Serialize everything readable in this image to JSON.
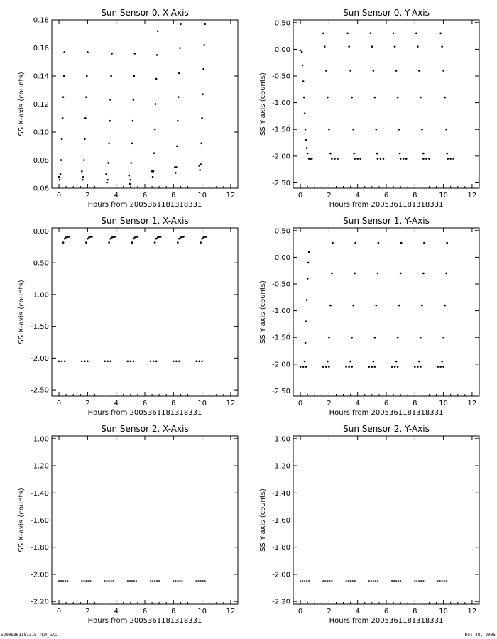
{
  "chart_data": [
    {
      "type": "scatter",
      "title": "Sun Sensor 0, X-Axis",
      "xlabel": "Hours from 2005361181318331",
      "ylabel": "SS X-axis (counts)",
      "xlim": [
        -0.5,
        12.5
      ],
      "ylim": [
        0.06,
        0.18
      ],
      "xticks": [
        0,
        2,
        4,
        6,
        8,
        10,
        12
      ],
      "yticks": [
        0.06,
        0.08,
        0.1,
        0.12,
        0.14,
        0.16,
        0.18
      ],
      "ytick_labels": [
        "0.06",
        "0.08",
        "0.10",
        "0.12",
        "0.14",
        "0.16",
        "0.18"
      ],
      "grid": false,
      "series": [
        {
          "x": [
            0.0,
            0.05,
            0.1,
            0.15,
            0.2,
            0.25,
            0.3,
            0.35,
            0.38,
            1.6,
            1.65,
            1.7,
            1.75,
            1.8,
            1.85,
            1.9,
            1.95,
            2.0,
            3.3,
            3.35,
            3.4,
            3.45,
            3.5,
            3.55,
            3.6,
            3.65,
            3.7,
            4.9,
            4.95,
            5.0,
            5.05,
            5.1,
            5.15,
            5.2,
            5.25,
            5.3,
            6.5,
            6.55,
            6.6,
            6.65,
            6.7,
            6.75,
            6.8,
            6.85,
            6.9,
            8.1,
            8.15,
            8.2,
            8.25,
            8.3,
            8.35,
            8.4,
            8.45,
            8.5,
            9.8,
            9.85,
            9.9,
            9.95,
            10.0,
            10.05,
            10.1,
            10.15,
            10.2
          ],
          "y": [
            0.068,
            0.066,
            0.07,
            0.08,
            0.095,
            0.11,
            0.125,
            0.14,
            0.157,
            0.072,
            0.066,
            0.068,
            0.08,
            0.095,
            0.11,
            0.125,
            0.14,
            0.157,
            0.07,
            0.064,
            0.066,
            0.078,
            0.092,
            0.108,
            0.123,
            0.14,
            0.156,
            0.069,
            0.063,
            0.066,
            0.078,
            0.092,
            0.108,
            0.123,
            0.14,
            0.156,
            0.072,
            0.068,
            0.072,
            0.085,
            0.102,
            0.12,
            0.138,
            0.155,
            0.172,
            0.075,
            0.071,
            0.075,
            0.09,
            0.108,
            0.125,
            0.142,
            0.16,
            0.177,
            0.076,
            0.073,
            0.077,
            0.092,
            0.11,
            0.127,
            0.145,
            0.162,
            0.177
          ]
        }
      ]
    },
    {
      "type": "scatter",
      "title": "Sun Sensor 0, Y-Axis",
      "xlabel": "Hours from 2005361181318331",
      "ylabel": "SS Y-axis (counts)",
      "xlim": [
        -0.5,
        12.5
      ],
      "ylim": [
        -2.6,
        0.55
      ],
      "xticks": [
        0,
        2,
        4,
        6,
        8,
        10,
        12
      ],
      "yticks": [
        -2.5,
        -2.0,
        -1.5,
        -1.0,
        -0.5,
        0.0,
        0.5
      ],
      "ytick_labels": [
        "-2.50",
        "-2.00",
        "-1.50",
        "-1.00",
        "-0.50",
        "0.00",
        "0.50"
      ],
      "grid": false,
      "series": [
        {
          "x": [
            0.0,
            0.1,
            0.15,
            0.2,
            0.25,
            0.3,
            0.35,
            0.4,
            0.45,
            0.5,
            1.6,
            1.7,
            1.8,
            1.9,
            2.0,
            2.1,
            3.3,
            3.4,
            3.5,
            3.6,
            3.7,
            3.75,
            4.9,
            5.0,
            5.1,
            5.2,
            5.3,
            5.35,
            6.5,
            6.6,
            6.7,
            6.8,
            6.9,
            6.95,
            8.1,
            8.2,
            8.3,
            8.4,
            8.5,
            8.6,
            9.8,
            9.9,
            10.0,
            10.1,
            10.2,
            10.25
          ],
          "y": [
            -0.02,
            -0.05,
            -0.3,
            -0.6,
            -0.9,
            -1.2,
            -1.5,
            -1.7,
            -1.85,
            -1.95,
            0.3,
            0.05,
            -0.4,
            -0.9,
            -1.5,
            -1.95,
            0.3,
            0.05,
            -0.4,
            -0.9,
            -1.5,
            -1.95,
            0.3,
            0.05,
            -0.4,
            -0.9,
            -1.5,
            -1.95,
            0.3,
            0.05,
            -0.4,
            -0.9,
            -1.5,
            -1.95,
            0.3,
            0.05,
            -0.4,
            -0.9,
            -1.5,
            -1.95,
            0.3,
            0.05,
            -0.4,
            -0.9,
            -1.5,
            -1.95
          ]
        },
        {
          "x": [
            0.6,
            0.7,
            0.8,
            2.2,
            2.4,
            2.6,
            3.8,
            4.0,
            4.2,
            5.4,
            5.6,
            5.8,
            7.0,
            7.2,
            7.4,
            8.6,
            8.8,
            9.0,
            10.3,
            10.5,
            10.7
          ],
          "y": [
            -2.05,
            -2.05,
            -2.05,
            -2.05,
            -2.05,
            -2.05,
            -2.05,
            -2.05,
            -2.05,
            -2.05,
            -2.05,
            -2.05,
            -2.05,
            -2.05,
            -2.05,
            -2.05,
            -2.05,
            -2.05,
            -2.05,
            -2.05,
            -2.05
          ]
        }
      ]
    },
    {
      "type": "scatter",
      "title": "Sun Sensor 1, X-Axis",
      "xlabel": "Hours from 2005361181318331",
      "ylabel": "SS X-axis (counts)",
      "xlim": [
        -0.5,
        12.5
      ],
      "ylim": [
        -2.6,
        0.05
      ],
      "xticks": [
        0,
        2,
        4,
        6,
        8,
        10,
        12
      ],
      "yticks": [
        -2.5,
        -2.0,
        -1.5,
        -1.0,
        -0.5,
        0.0
      ],
      "ytick_labels": [
        "-2.50",
        "-2.00",
        "-1.50",
        "-1.00",
        "-0.50",
        "0.00"
      ],
      "grid": false,
      "series": [
        {
          "x": [
            0.3,
            0.4,
            0.5,
            0.6,
            0.7,
            1.9,
            2.0,
            2.1,
            2.2,
            2.3,
            3.5,
            3.6,
            3.7,
            3.8,
            3.9,
            5.1,
            5.2,
            5.3,
            5.4,
            5.5,
            6.7,
            6.8,
            6.9,
            7.0,
            7.1,
            8.3,
            8.4,
            8.5,
            8.6,
            8.7,
            9.9,
            10.0,
            10.1,
            10.2,
            10.3
          ],
          "y": [
            -0.18,
            -0.12,
            -0.1,
            -0.09,
            -0.09,
            -0.18,
            -0.12,
            -0.1,
            -0.09,
            -0.09,
            -0.18,
            -0.12,
            -0.1,
            -0.09,
            -0.09,
            -0.18,
            -0.12,
            -0.1,
            -0.09,
            -0.09,
            -0.18,
            -0.12,
            -0.1,
            -0.09,
            -0.09,
            -0.18,
            -0.12,
            -0.1,
            -0.09,
            -0.09,
            -0.18,
            -0.12,
            -0.1,
            -0.09,
            -0.09
          ]
        },
        {
          "x": [
            0.0,
            0.2,
            0.4,
            1.6,
            1.8,
            2.0,
            3.2,
            3.4,
            3.6,
            4.8,
            5.0,
            5.2,
            6.4,
            6.6,
            6.8,
            8.0,
            8.2,
            8.4,
            9.6,
            9.8,
            10.0
          ],
          "y": [
            -2.05,
            -2.05,
            -2.05,
            -2.05,
            -2.05,
            -2.05,
            -2.05,
            -2.05,
            -2.05,
            -2.05,
            -2.05,
            -2.05,
            -2.05,
            -2.05,
            -2.05,
            -2.05,
            -2.05,
            -2.05,
            -2.05,
            -2.05,
            -2.05
          ]
        }
      ]
    },
    {
      "type": "scatter",
      "title": "Sun Sensor 1, Y-Axis",
      "xlabel": "Hours from 2005361181318331",
      "ylabel": "SS Y-axis (counts)",
      "xlim": [
        -0.5,
        12.5
      ],
      "ylim": [
        -2.6,
        0.55
      ],
      "xticks": [
        0,
        2,
        4,
        6,
        8,
        10,
        12
      ],
      "yticks": [
        -2.5,
        -2.0,
        -1.5,
        -1.0,
        -0.5,
        0.0,
        0.5
      ],
      "ytick_labels": [
        "-2.50",
        "-2.00",
        "-1.50",
        "-1.00",
        "-0.50",
        "0.00",
        "0.50"
      ],
      "grid": false,
      "series": [
        {
          "x": [
            0.3,
            0.35,
            0.4,
            0.45,
            0.5,
            0.55,
            0.6,
            1.9,
            2.0,
            2.1,
            2.2,
            2.25,
            3.5,
            3.6,
            3.7,
            3.8,
            3.85,
            5.1,
            5.2,
            5.3,
            5.4,
            5.45,
            6.7,
            6.8,
            6.9,
            7.0,
            7.05,
            8.3,
            8.4,
            8.5,
            8.6,
            8.65,
            9.9,
            10.0,
            10.1,
            10.2,
            10.25
          ],
          "y": [
            -1.95,
            -1.6,
            -1.2,
            -0.8,
            -0.4,
            -0.1,
            0.1,
            -1.95,
            -1.5,
            -0.9,
            -0.3,
            0.27,
            -1.95,
            -1.5,
            -0.9,
            -0.3,
            0.27,
            -1.95,
            -1.5,
            -0.9,
            -0.3,
            0.27,
            -1.95,
            -1.5,
            -0.9,
            -0.3,
            0.27,
            -1.95,
            -1.5,
            -0.9,
            -0.3,
            0.27,
            -1.95,
            -1.5,
            -0.9,
            -0.3,
            0.27
          ]
        },
        {
          "x": [
            0.0,
            0.2,
            0.4,
            1.6,
            1.8,
            2.0,
            3.2,
            3.4,
            3.6,
            4.8,
            5.0,
            5.2,
            6.4,
            6.6,
            6.8,
            8.0,
            8.2,
            8.4,
            9.6,
            9.8,
            10.0
          ],
          "y": [
            -2.05,
            -2.05,
            -2.05,
            -2.05,
            -2.05,
            -2.05,
            -2.05,
            -2.05,
            -2.05,
            -2.05,
            -2.05,
            -2.05,
            -2.05,
            -2.05,
            -2.05,
            -2.05,
            -2.05,
            -2.05,
            -2.05,
            -2.05,
            -2.05
          ]
        }
      ]
    },
    {
      "type": "scatter",
      "title": "Sun Sensor 2, X-Axis",
      "xlabel": "Hours from 2005361181318331",
      "ylabel": "SS X-axis (counts)",
      "xlim": [
        -0.5,
        12.5
      ],
      "ylim": [
        -2.22,
        -0.98
      ],
      "xticks": [
        0,
        2,
        4,
        6,
        8,
        10,
        12
      ],
      "yticks": [
        -2.2,
        -2.0,
        -1.8,
        -1.6,
        -1.4,
        -1.2,
        -1.0
      ],
      "ytick_labels": [
        "-2.20",
        "-2.00",
        "-1.80",
        "-1.60",
        "-1.40",
        "-1.20",
        "-1.00"
      ],
      "grid": false,
      "series": [
        {
          "x": [
            0.0,
            0.15,
            0.3,
            0.45,
            0.6,
            1.6,
            1.75,
            1.9,
            2.05,
            2.2,
            3.2,
            3.35,
            3.5,
            3.65,
            3.8,
            4.8,
            4.95,
            5.1,
            5.25,
            5.4,
            6.4,
            6.55,
            6.7,
            6.85,
            7.0,
            8.0,
            8.15,
            8.3,
            8.45,
            8.6,
            9.6,
            9.75,
            9.9,
            10.05,
            10.2
          ],
          "y": [
            -2.05,
            -2.05,
            -2.05,
            -2.05,
            -2.05,
            -2.05,
            -2.05,
            -2.05,
            -2.05,
            -2.05,
            -2.05,
            -2.05,
            -2.05,
            -2.05,
            -2.05,
            -2.05,
            -2.05,
            -2.05,
            -2.05,
            -2.05,
            -2.05,
            -2.05,
            -2.05,
            -2.05,
            -2.05,
            -2.05,
            -2.05,
            -2.05,
            -2.05,
            -2.05,
            -2.05,
            -2.05,
            -2.05,
            -2.05,
            -2.05
          ]
        }
      ]
    },
    {
      "type": "scatter",
      "title": "Sun Sensor 2, Y-Axis",
      "xlabel": "Hours from 2005361181318331",
      "ylabel": "SS Y-axis (counts)",
      "xlim": [
        -0.5,
        12.5
      ],
      "ylim": [
        -2.22,
        -0.98
      ],
      "xticks": [
        0,
        2,
        4,
        6,
        8,
        10,
        12
      ],
      "yticks": [
        -2.2,
        -2.0,
        -1.8,
        -1.6,
        -1.4,
        -1.2,
        -1.0
      ],
      "ytick_labels": [
        "-2.20",
        "-2.00",
        "-1.80",
        "-1.60",
        "-1.40",
        "-1.20",
        "-1.00"
      ],
      "grid": false,
      "series": [
        {
          "x": [
            0.0,
            0.15,
            0.3,
            0.45,
            0.6,
            1.6,
            1.75,
            1.9,
            2.05,
            2.2,
            3.2,
            3.35,
            3.5,
            3.65,
            3.8,
            4.8,
            4.95,
            5.1,
            5.25,
            5.4,
            6.4,
            6.55,
            6.7,
            6.85,
            7.0,
            8.0,
            8.15,
            8.3,
            8.45,
            8.6,
            9.6,
            9.75,
            9.9,
            10.05,
            10.2
          ],
          "y": [
            -2.05,
            -2.05,
            -2.05,
            -2.05,
            -2.05,
            -2.05,
            -2.05,
            -2.05,
            -2.05,
            -2.05,
            -2.05,
            -2.05,
            -2.05,
            -2.05,
            -2.05,
            -2.05,
            -2.05,
            -2.05,
            -2.05,
            -2.05,
            -2.05,
            -2.05,
            -2.05,
            -2.05,
            -2.05,
            -2.05,
            -2.05,
            -2.05,
            -2.05,
            -2.05,
            -2.05,
            -2.05,
            -2.05,
            -2.05,
            -2.05
          ]
        }
      ]
    }
  ],
  "footer": {
    "left": "S2005361181315.TLM_GAC",
    "right": "Dec 28, 2005"
  }
}
